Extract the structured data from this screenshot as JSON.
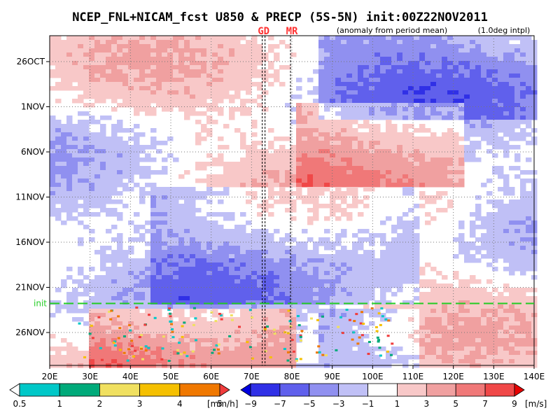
{
  "chart_data": {
    "type": "heatmap",
    "title": "NCEP_FNL+NICAM_fcst U850 & PRECP (5S-5N) init:00Z22NOV2011",
    "subtitle_left": "(anomaly from period mean)",
    "subtitle_right": "(1.0deg intpl)",
    "x_ticks": [
      "20E",
      "30E",
      "40E",
      "50E",
      "60E",
      "70E",
      "80E",
      "90E",
      "100E",
      "110E",
      "120E",
      "130E",
      "140E"
    ],
    "y_ticks": [
      "26OCT",
      "1NOV",
      "6NOV",
      "11NOV",
      "16NOV",
      "21NOV",
      "26NOV"
    ],
    "xlim": [
      20,
      140
    ],
    "region_markers": [
      {
        "label": "GD",
        "lon": 73
      },
      {
        "label": "MR",
        "lon": 80
      }
    ],
    "init_line": {
      "label": "init",
      "date": "22NOV2011"
    },
    "precip_colorbar": {
      "unit": "[mm/h]",
      "ticks": [
        "0.5",
        "1",
        "2",
        "3",
        "4",
        "5"
      ],
      "colors": [
        "#ffffff",
        "#00c8c8",
        "#00aa7a",
        "#f0e060",
        "#f5c000",
        "#f07800",
        "#f03c3c"
      ]
    },
    "wind_colorbar": {
      "unit": "[m/s]",
      "ticks": [
        "−9",
        "−7",
        "−5",
        "−3",
        "−1",
        "1",
        "3",
        "5",
        "7",
        "9"
      ],
      "colors": [
        "#0000e0",
        "#3030e6",
        "#6060ec",
        "#9090f0",
        "#c0c0f6",
        "#ffffff",
        "#f8c8c8",
        "#f0a0a0",
        "#f07878",
        "#f04848",
        "#e60000"
      ]
    }
  }
}
